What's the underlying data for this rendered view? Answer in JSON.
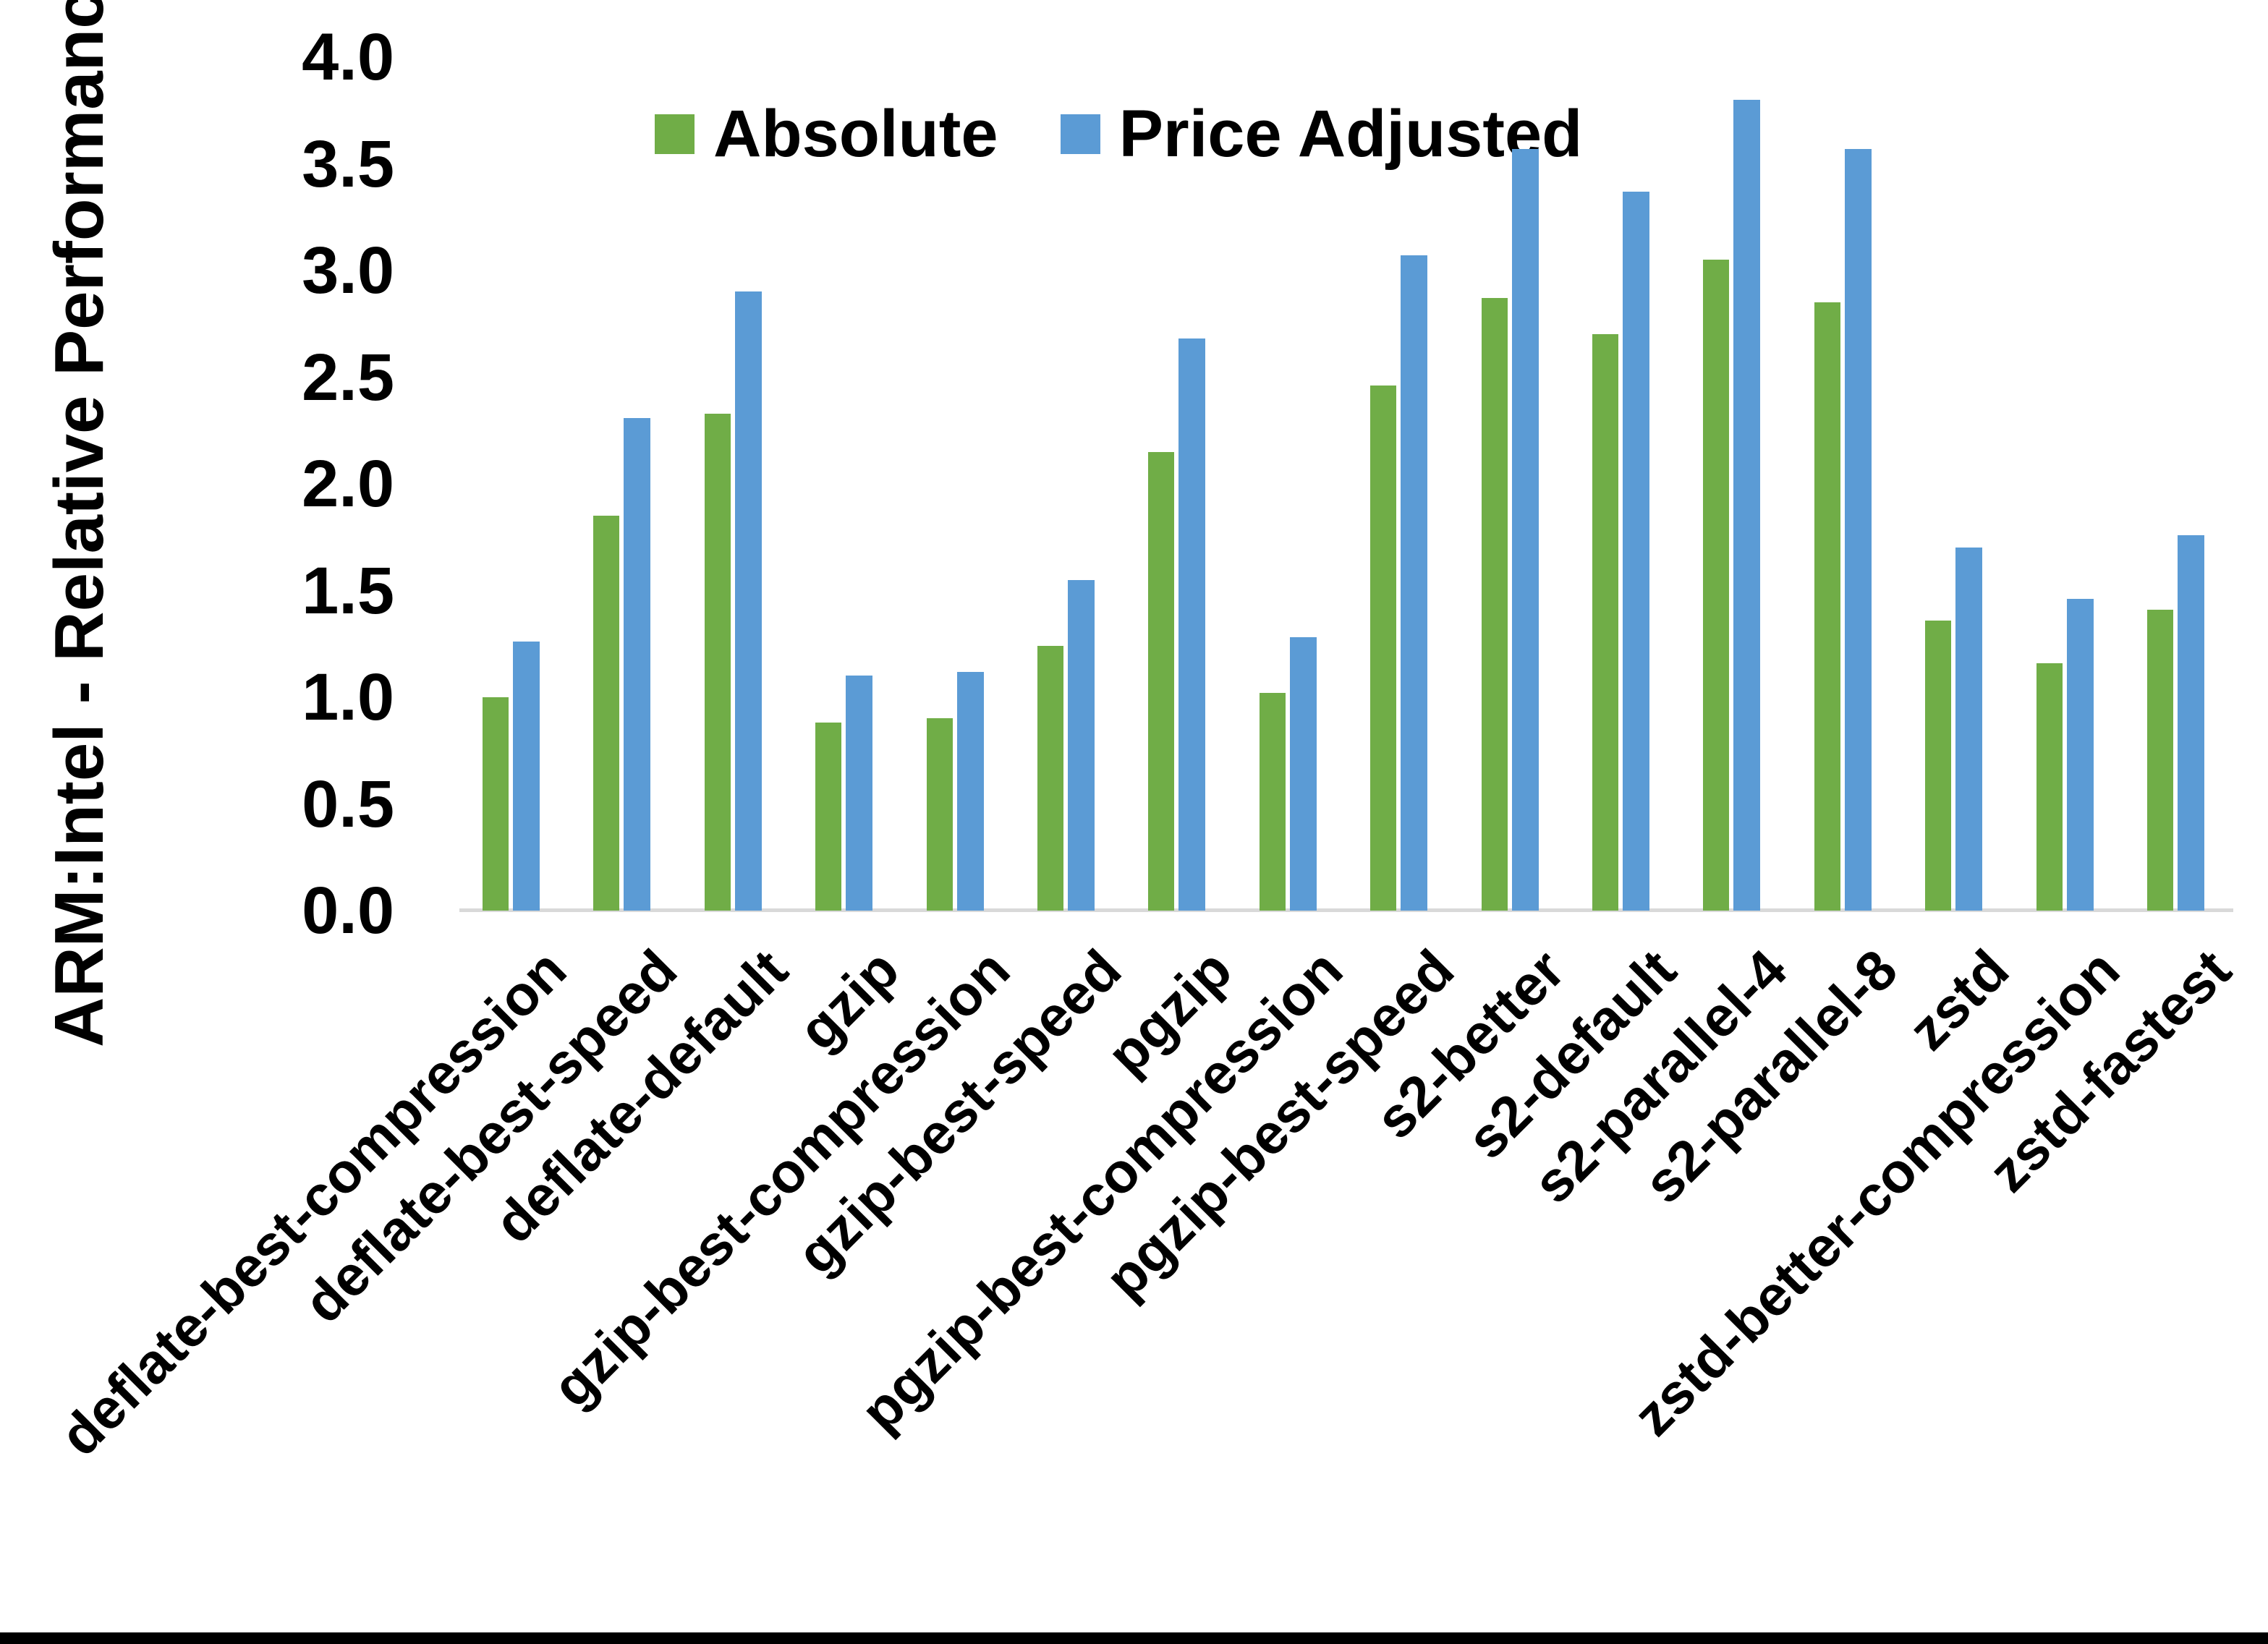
{
  "chart_data": {
    "type": "bar",
    "title": "",
    "xlabel": "",
    "ylabel": "ARM:Intel - Relative Performance",
    "ylim": [
      0.0,
      4.0
    ],
    "y_ticks": [
      "0.0",
      "0.5",
      "1.0",
      "1.5",
      "2.0",
      "2.5",
      "3.0",
      "3.5",
      "4.0"
    ],
    "grid": false,
    "legend_position": "top-center",
    "categories": [
      "deflate-best-compression",
      "deflate-best-speed",
      "deflate-default",
      "gzip",
      "gzip-best-compression",
      "gzip-best-speed",
      "pgzip",
      "pgzip-best-compression",
      "pgzip-best-speed",
      "s2-better",
      "s2-default",
      "s2-parallel-4",
      "s2-parallel-8",
      "zstd",
      "zstd-better-compression",
      "zstd-fastest"
    ],
    "series": [
      {
        "name": "Absolute",
        "color": "#70AD47",
        "values": [
          1.0,
          1.85,
          2.33,
          0.88,
          0.9,
          1.24,
          2.15,
          1.02,
          2.46,
          2.87,
          2.7,
          3.05,
          2.85,
          1.36,
          1.16,
          1.41
        ]
      },
      {
        "name": "Price Adjusted",
        "color": "#5B9BD5",
        "values": [
          1.26,
          2.31,
          2.9,
          1.1,
          1.12,
          1.55,
          2.68,
          1.28,
          3.07,
          3.57,
          3.37,
          3.8,
          3.57,
          1.7,
          1.46,
          1.76
        ]
      }
    ],
    "axis_line_color": "#D9D9D9"
  },
  "page": {
    "background": "#FFFFFF",
    "bottom_border_color": "#000000"
  }
}
